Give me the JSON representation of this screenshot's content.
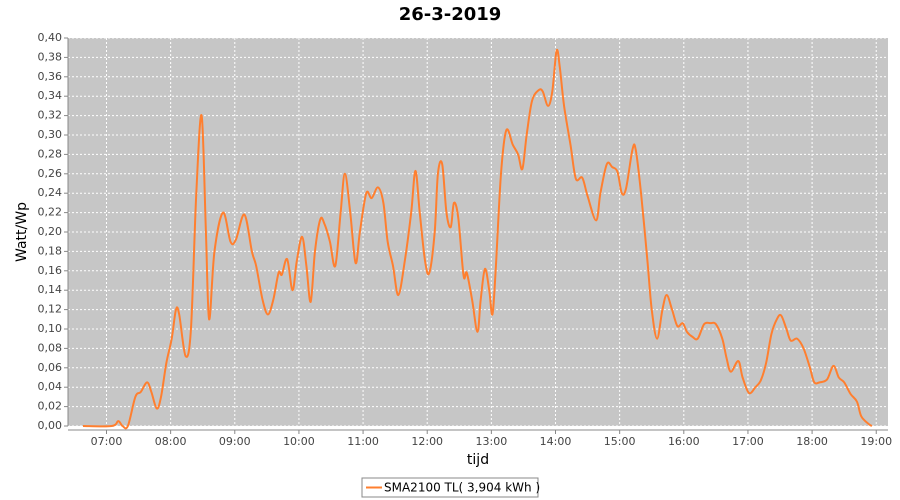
{
  "chart_data": {
    "type": "line",
    "title": "26-3-2019",
    "xlabel": "tijd",
    "ylabel": "Watt/Wp",
    "x": [
      398,
      425,
      431,
      435,
      440,
      447,
      452,
      458,
      462,
      467,
      471,
      476,
      481,
      485,
      488,
      494,
      499,
      504,
      509,
      513,
      516,
      521,
      529,
      536,
      541,
      549,
      556,
      560,
      566,
      571,
      576,
      581,
      584,
      589,
      594,
      598,
      603,
      607,
      611,
      615,
      620,
      624,
      629,
      634,
      639,
      643,
      648,
      653,
      657,
      663,
      668,
      674,
      679,
      683,
      688,
      693,
      699,
      705,
      709,
      713,
      718,
      722,
      727,
      730,
      734,
      738,
      742,
      745,
      749,
      754,
      757,
      762,
      767,
      770,
      774,
      778,
      781,
      784,
      789,
      794,
      800,
      805,
      809,
      813,
      818,
      824,
      828,
      833,
      837,
      841,
      844,
      848,
      854,
      859,
      865,
      870,
      878,
      882,
      888,
      893,
      898,
      902,
      906,
      912,
      915,
      920,
      926,
      930,
      935,
      940,
      944,
      949,
      954,
      959,
      963,
      968,
      973,
      979,
      985,
      990,
      996,
      1000,
      1004,
      1011,
      1015,
      1021,
      1027,
      1032,
      1037,
      1042,
      1047,
      1051,
      1056,
      1060,
      1066,
      1072,
      1078,
      1082,
      1087,
      1094,
      1100,
      1105,
      1110,
      1116,
      1122,
      1126,
      1133,
      1136
    ],
    "series": [
      {
        "name": "SMA2100 TL( 3,904 kWh )",
        "color": "#ff7f2f",
        "values": [
          0,
          0,
          0.005,
          0,
          0,
          0.03,
          0.035,
          0.045,
          0.035,
          0.018,
          0.03,
          0.065,
          0.09,
          0.12,
          0.115,
          0.072,
          0.1,
          0.24,
          0.32,
          0.2,
          0.11,
          0.18,
          0.22,
          0.19,
          0.192,
          0.218,
          0.18,
          0.165,
          0.13,
          0.115,
          0.13,
          0.158,
          0.156,
          0.172,
          0.14,
          0.17,
          0.195,
          0.165,
          0.128,
          0.18,
          0.213,
          0.208,
          0.19,
          0.165,
          0.22,
          0.26,
          0.22,
          0.168,
          0.2,
          0.24,
          0.235,
          0.246,
          0.23,
          0.19,
          0.165,
          0.135,
          0.17,
          0.22,
          0.263,
          0.22,
          0.17,
          0.158,
          0.2,
          0.26,
          0.27,
          0.22,
          0.205,
          0.23,
          0.215,
          0.155,
          0.158,
          0.13,
          0.097,
          0.13,
          0.162,
          0.14,
          0.115,
          0.16,
          0.26,
          0.305,
          0.29,
          0.28,
          0.265,
          0.3,
          0.335,
          0.346,
          0.345,
          0.33,
          0.345,
          0.387,
          0.37,
          0.33,
          0.29,
          0.255,
          0.256,
          0.237,
          0.212,
          0.24,
          0.27,
          0.267,
          0.262,
          0.24,
          0.245,
          0.285,
          0.285,
          0.24,
          0.17,
          0.12,
          0.09,
          0.12,
          0.135,
          0.12,
          0.103,
          0.106,
          0.097,
          0.092,
          0.09,
          0.105,
          0.106,
          0.105,
          0.09,
          0.07,
          0.056,
          0.067,
          0.05,
          0.034,
          0.04,
          0.047,
          0.065,
          0.095,
          0.11,
          0.114,
          0.1,
          0.088,
          0.09,
          0.08,
          0.06,
          0.045,
          0.045,
          0.048,
          0.062,
          0.05,
          0.045,
          0.033,
          0.025,
          0.01,
          0.002,
          0
        ]
      }
    ],
    "xlim": [
      384,
      1151
    ],
    "ylim": [
      0,
      0.4
    ],
    "xticks": [
      {
        "value": 420,
        "label": "07:00"
      },
      {
        "value": 480,
        "label": "08:00"
      },
      {
        "value": 540,
        "label": "09:00"
      },
      {
        "value": 600,
        "label": "10:00"
      },
      {
        "value": 660,
        "label": "11:00"
      },
      {
        "value": 720,
        "label": "12:00"
      },
      {
        "value": 780,
        "label": "13:00"
      },
      {
        "value": 840,
        "label": "14:00"
      },
      {
        "value": 900,
        "label": "15:00"
      },
      {
        "value": 960,
        "label": "16:00"
      },
      {
        "value": 1020,
        "label": "17:00"
      },
      {
        "value": 1080,
        "label": "18:00"
      },
      {
        "value": 1140,
        "label": "19:00"
      }
    ],
    "yticks": [
      {
        "value": 0,
        "label": "0,00"
      },
      {
        "value": 0.02,
        "label": "0,02"
      },
      {
        "value": 0.04,
        "label": "0,04"
      },
      {
        "value": 0.06,
        "label": "0,06"
      },
      {
        "value": 0.08,
        "label": "0,08"
      },
      {
        "value": 0.1,
        "label": "0,10"
      },
      {
        "value": 0.12,
        "label": "0,12"
      },
      {
        "value": 0.14,
        "label": "0,14"
      },
      {
        "value": 0.16,
        "label": "0,16"
      },
      {
        "value": 0.18,
        "label": "0,18"
      },
      {
        "value": 0.2,
        "label": "0,20"
      },
      {
        "value": 0.22,
        "label": "0,22"
      },
      {
        "value": 0.24,
        "label": "0,24"
      },
      {
        "value": 0.26,
        "label": "0,26"
      },
      {
        "value": 0.28,
        "label": "0,28"
      },
      {
        "value": 0.3,
        "label": "0,30"
      },
      {
        "value": 0.32,
        "label": "0,32"
      },
      {
        "value": 0.34,
        "label": "0,34"
      },
      {
        "value": 0.36,
        "label": "0,36"
      },
      {
        "value": 0.38,
        "label": "0,38"
      },
      {
        "value": 0.4,
        "label": "0,40"
      }
    ],
    "grid": true,
    "legend": "bottom"
  }
}
